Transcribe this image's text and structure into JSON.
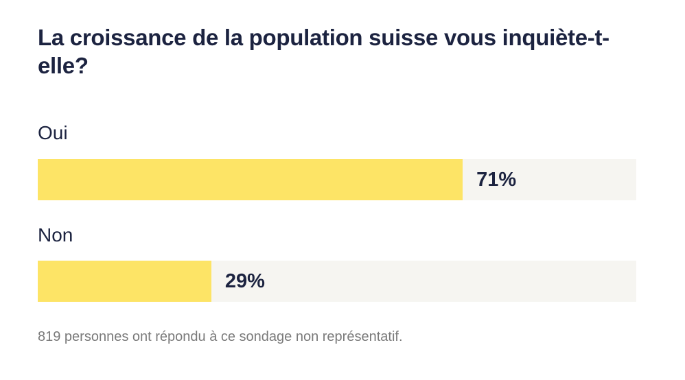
{
  "poll": {
    "question": "La croissance de la population suisse vous inquiète-t-elle?",
    "footnote": "819 personnes ont répondu à ce sondage non représentatif."
  },
  "colors": {
    "bar_fill": "#fde466",
    "bar_track": "#f6f5f1",
    "text": "#1c2340",
    "footnote": "#7a7a7a"
  },
  "chart_data": {
    "type": "bar",
    "orientation": "horizontal",
    "title": "La croissance de la population suisse vous inquiète-t-elle?",
    "categories": [
      "Oui",
      "Non"
    ],
    "values": [
      71,
      29
    ],
    "value_labels": [
      "71%",
      "29%"
    ],
    "unit": "%",
    "xlim": [
      0,
      100
    ],
    "grid": false,
    "legend": "none"
  }
}
